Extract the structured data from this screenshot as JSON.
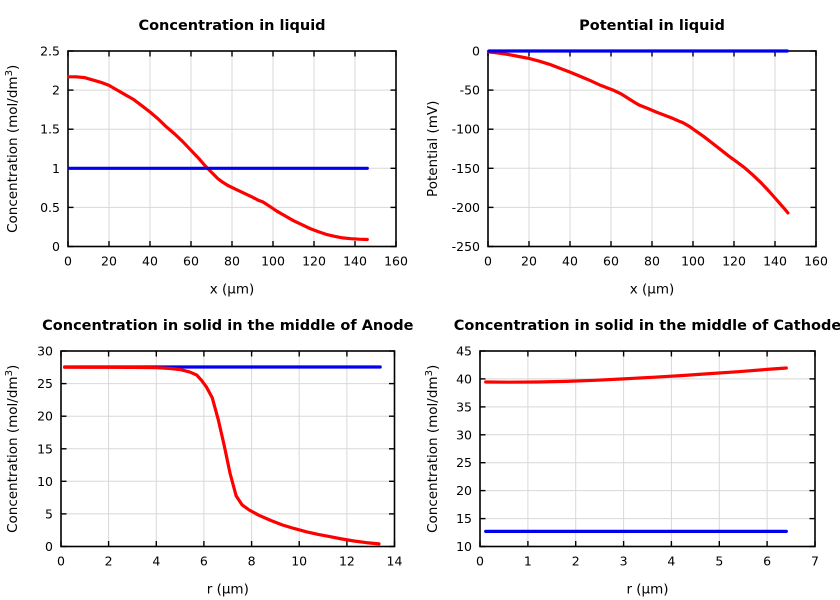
{
  "figure": {
    "background": "#ffffff"
  },
  "colors": {
    "grid": "#d8d8d8",
    "axis": "#000000",
    "red": "#ff0000",
    "blue": "#0000ee"
  },
  "chart_data": [
    {
      "type": "line",
      "title": "Concentration in liquid",
      "xlabel": "x (µm)",
      "ylabel": "Concentration (mol/dm³)",
      "xlim": [
        0,
        160
      ],
      "ylim": [
        0,
        2.5
      ],
      "xticks": [
        0,
        20,
        40,
        60,
        80,
        100,
        120,
        140,
        160
      ],
      "yticks": [
        0,
        0.5,
        1,
        1.5,
        2,
        2.5
      ],
      "grid": true,
      "legend": false,
      "series": [
        {
          "name": "red",
          "color": "#ff0000",
          "points": [
            [
              0.3,
              2.17
            ],
            [
              4,
              2.17
            ],
            [
              8,
              2.16
            ],
            [
              12,
              2.13
            ],
            [
              16,
              2.1
            ],
            [
              20,
              2.06
            ],
            [
              24,
              2.0
            ],
            [
              28,
              1.94
            ],
            [
              32,
              1.88
            ],
            [
              36,
              1.8
            ],
            [
              40,
              1.72
            ],
            [
              44,
              1.63
            ],
            [
              48,
              1.53
            ],
            [
              52,
              1.44
            ],
            [
              56,
              1.34
            ],
            [
              60,
              1.23
            ],
            [
              64,
              1.12
            ],
            [
              67,
              1.03
            ],
            [
              70,
              0.95
            ],
            [
              73,
              0.87
            ],
            [
              75,
              0.83
            ],
            [
              78,
              0.78
            ],
            [
              82,
              0.73
            ],
            [
              86,
              0.68
            ],
            [
              90,
              0.63
            ],
            [
              93,
              0.59
            ],
            [
              95,
              0.57
            ],
            [
              98,
              0.52
            ],
            [
              102,
              0.45
            ],
            [
              106,
              0.39
            ],
            [
              110,
              0.33
            ],
            [
              114,
              0.28
            ],
            [
              118,
              0.23
            ],
            [
              122,
              0.19
            ],
            [
              126,
              0.155
            ],
            [
              130,
              0.13
            ],
            [
              134,
              0.11
            ],
            [
              138,
              0.1
            ],
            [
              142,
              0.093
            ],
            [
              146,
              0.09
            ]
          ]
        },
        {
          "name": "blue",
          "color": "#0000ee",
          "points": [
            [
              0.5,
              1.0
            ],
            [
              146,
              1.0
            ]
          ]
        }
      ]
    },
    {
      "type": "line",
      "title": "Potential in liquid",
      "xlabel": "x (µm)",
      "ylabel": "Potential (mV)",
      "xlim": [
        0,
        160
      ],
      "ylim": [
        -250,
        0
      ],
      "xticks": [
        0,
        20,
        40,
        60,
        80,
        100,
        120,
        140,
        160
      ],
      "yticks": [
        -250,
        -200,
        -150,
        -100,
        -50,
        0
      ],
      "grid": true,
      "legend": false,
      "series": [
        {
          "name": "red",
          "color": "#ff0000",
          "points": [
            [
              0.3,
              -1.2
            ],
            [
              5,
              -2.5
            ],
            [
              10,
              -4.5
            ],
            [
              15,
              -7
            ],
            [
              20,
              -9.5
            ],
            [
              25,
              -13
            ],
            [
              30,
              -17
            ],
            [
              35,
              -22
            ],
            [
              40,
              -27
            ],
            [
              45,
              -32.5
            ],
            [
              50,
              -38
            ],
            [
              55,
              -44
            ],
            [
              61,
              -50
            ],
            [
              65,
              -55
            ],
            [
              68,
              -60
            ],
            [
              72,
              -66.5
            ],
            [
              74,
              -69.5
            ],
            [
              78,
              -73.5
            ],
            [
              82,
              -78
            ],
            [
              86,
              -82
            ],
            [
              90,
              -86
            ],
            [
              93,
              -89.5
            ],
            [
              95,
              -91.5
            ],
            [
              98,
              -96
            ],
            [
              101,
              -101.5
            ],
            [
              105,
              -109
            ],
            [
              109,
              -117
            ],
            [
              113,
              -125
            ],
            [
              117,
              -133.5
            ],
            [
              121,
              -141
            ],
            [
              125,
              -149
            ],
            [
              129,
              -158
            ],
            [
              133,
              -168
            ],
            [
              137,
              -179
            ],
            [
              140,
              -188
            ],
            [
              143,
              -197
            ],
            [
              145,
              -203
            ],
            [
              146.3,
              -207
            ]
          ]
        },
        {
          "name": "blue",
          "color": "#0000ee",
          "points": [
            [
              0.5,
              0
            ],
            [
              146,
              0
            ]
          ]
        }
      ]
    },
    {
      "type": "line",
      "title": "Concentration in solid in the middle of Anode",
      "xlabel": "r (µm)",
      "ylabel": "Concentration (mol/dm³)",
      "xlim": [
        0,
        14
      ],
      "ylim": [
        0,
        30
      ],
      "xticks": [
        0,
        2,
        4,
        6,
        8,
        10,
        12,
        14
      ],
      "yticks": [
        0,
        5,
        10,
        15,
        20,
        25,
        30
      ],
      "grid": true,
      "legend": false,
      "series": [
        {
          "name": "blue",
          "color": "#0000ee",
          "points": [
            [
              0.15,
              27.55
            ],
            [
              13.4,
              27.55
            ]
          ]
        },
        {
          "name": "red",
          "color": "#ff0000",
          "points": [
            [
              0.15,
              27.52
            ],
            [
              1,
              27.5
            ],
            [
              2,
              27.5
            ],
            [
              3,
              27.48
            ],
            [
              4,
              27.43
            ],
            [
              4.6,
              27.32
            ],
            [
              5,
              27.15
            ],
            [
              5.4,
              26.8
            ],
            [
              5.7,
              26.3
            ],
            [
              5.9,
              25.5
            ],
            [
              6.1,
              24.5
            ],
            [
              6.35,
              22.8
            ],
            [
              6.6,
              19.5
            ],
            [
              6.85,
              15.5
            ],
            [
              7.1,
              11.2
            ],
            [
              7.35,
              7.8
            ],
            [
              7.6,
              6.4
            ],
            [
              7.9,
              5.6
            ],
            [
              8.3,
              4.8
            ],
            [
              8.8,
              4.0
            ],
            [
              9.3,
              3.3
            ],
            [
              9.8,
              2.75
            ],
            [
              10.3,
              2.25
            ],
            [
              10.8,
              1.85
            ],
            [
              11.3,
              1.5
            ],
            [
              11.8,
              1.15
            ],
            [
              12.3,
              0.85
            ],
            [
              12.8,
              0.6
            ],
            [
              13.35,
              0.4
            ]
          ]
        }
      ]
    },
    {
      "type": "line",
      "title": "Concentration in solid in the middle of Cathode",
      "xlabel": "r (µm)",
      "ylabel": "Concentration (mol/dm³)",
      "xlim": [
        0,
        7
      ],
      "ylim": [
        10,
        45
      ],
      "xticks": [
        0,
        1,
        2,
        3,
        4,
        5,
        6,
        7
      ],
      "yticks": [
        10,
        15,
        20,
        25,
        30,
        35,
        40,
        45
      ],
      "grid": true,
      "legend": false,
      "series": [
        {
          "name": "blue",
          "color": "#0000ee",
          "points": [
            [
              0.12,
              12.7
            ],
            [
              6.4,
              12.7
            ]
          ]
        },
        {
          "name": "red",
          "color": "#ff0000",
          "points": [
            [
              0.12,
              39.45
            ],
            [
              0.6,
              39.42
            ],
            [
              1.2,
              39.45
            ],
            [
              1.8,
              39.55
            ],
            [
              2.4,
              39.75
            ],
            [
              3.0,
              40.0
            ],
            [
              3.6,
              40.3
            ],
            [
              4.2,
              40.6
            ],
            [
              4.8,
              40.95
            ],
            [
              5.4,
              41.3
            ],
            [
              6.0,
              41.7
            ],
            [
              6.4,
              41.95
            ]
          ]
        }
      ]
    }
  ]
}
